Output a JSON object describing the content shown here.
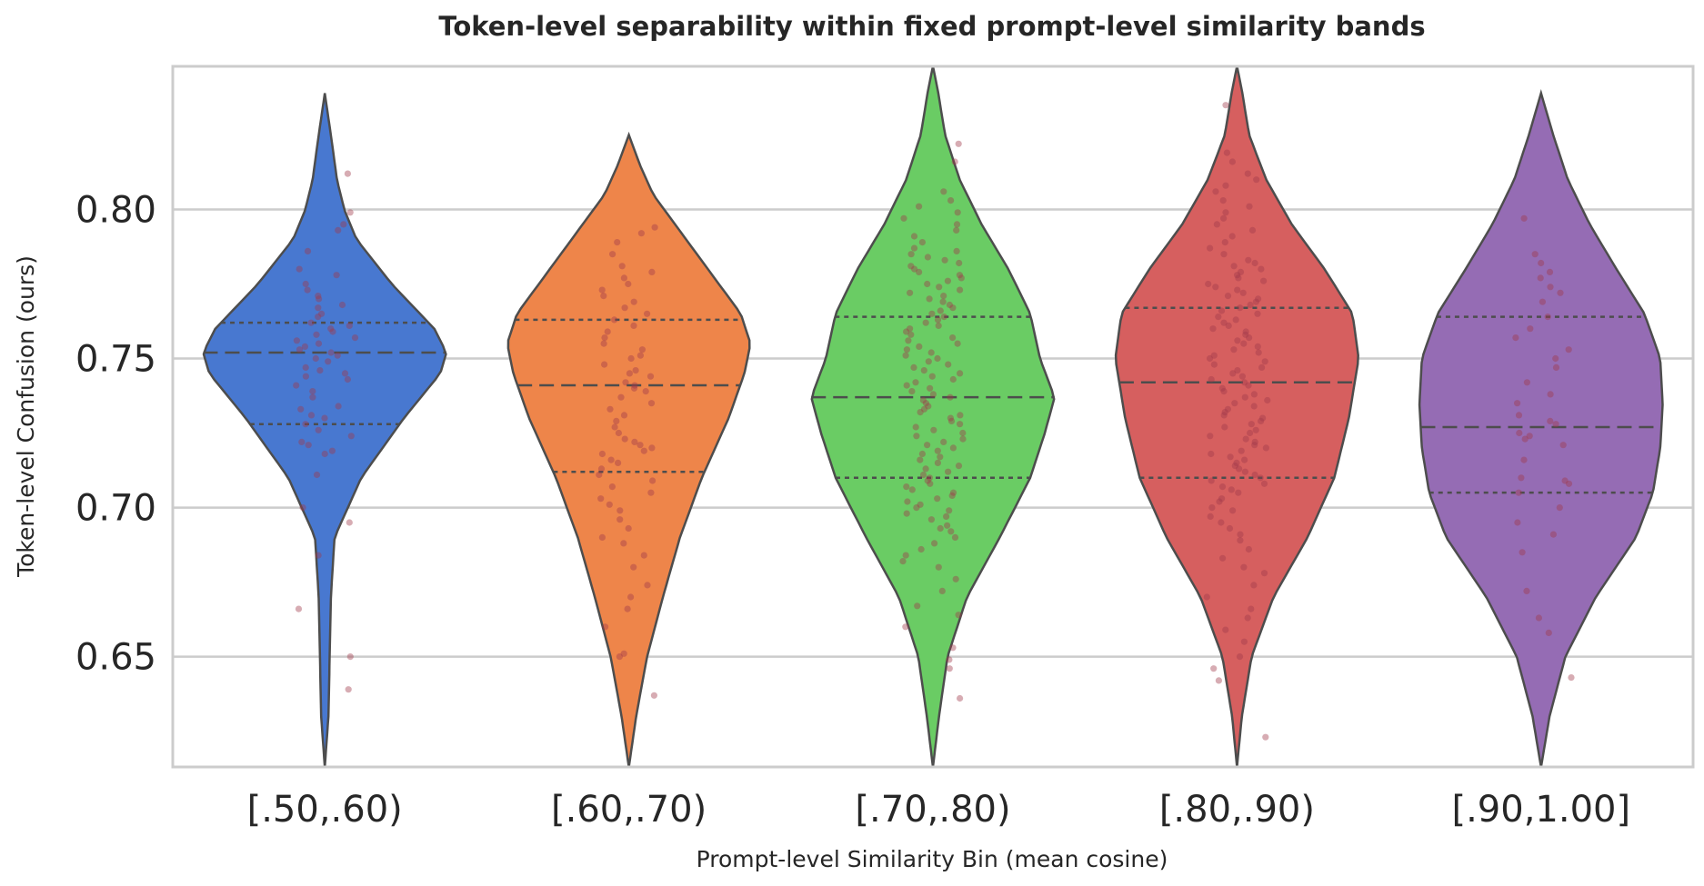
{
  "chart_data": {
    "type": "violin",
    "title": "Token-level separability within fixed prompt-level similarity bands",
    "xlabel": "Prompt-level Similarity Bin (mean cosine)",
    "ylabel": "Token-level Confusion (ours)",
    "ylim": [
      0.613,
      0.848
    ],
    "yticks": [
      0.65,
      0.7,
      0.75,
      0.8
    ],
    "ytick_labels": [
      "0.65",
      "0.70",
      "0.75",
      "0.80"
    ],
    "grid": true,
    "point_color": "#a03a4a",
    "categories": [
      "[.50,.60)",
      "[.60,.70)",
      "[.70,.80)",
      "[.80,.90)",
      "[.90,1.00]"
    ],
    "violins": [
      {
        "category": "[.50,.60)",
        "color": "#4878d0",
        "q1": 0.728,
        "median": 0.752,
        "q3": 0.762,
        "range": [
          0.613,
          0.839
        ],
        "profile": [
          [
            0.613,
            0.0
          ],
          [
            0.63,
            0.03
          ],
          [
            0.65,
            0.04
          ],
          [
            0.67,
            0.05
          ],
          [
            0.69,
            0.08
          ],
          [
            0.71,
            0.3
          ],
          [
            0.73,
            0.65
          ],
          [
            0.745,
            0.95
          ],
          [
            0.752,
            1.0
          ],
          [
            0.76,
            0.9
          ],
          [
            0.775,
            0.55
          ],
          [
            0.79,
            0.26
          ],
          [
            0.8,
            0.16
          ],
          [
            0.81,
            0.1
          ],
          [
            0.825,
            0.05
          ],
          [
            0.839,
            0.0
          ]
        ],
        "points": [
          0.639,
          0.65,
          0.666,
          0.684,
          0.695,
          0.7,
          0.711,
          0.718,
          0.719,
          0.721,
          0.722,
          0.724,
          0.726,
          0.728,
          0.73,
          0.731,
          0.733,
          0.734,
          0.737,
          0.739,
          0.741,
          0.743,
          0.744,
          0.745,
          0.746,
          0.747,
          0.749,
          0.75,
          0.751,
          0.752,
          0.753,
          0.754,
          0.755,
          0.756,
          0.757,
          0.758,
          0.759,
          0.76,
          0.761,
          0.762,
          0.764,
          0.765,
          0.767,
          0.768,
          0.77,
          0.771,
          0.773,
          0.775,
          0.778,
          0.78,
          0.786,
          0.793,
          0.795,
          0.799,
          0.812
        ]
      },
      {
        "category": "[.60,.70)",
        "color": "#ee854a",
        "q1": 0.712,
        "median": 0.741,
        "q3": 0.763,
        "range": [
          0.613,
          0.825
        ],
        "profile": [
          [
            0.613,
            0.0
          ],
          [
            0.63,
            0.06
          ],
          [
            0.65,
            0.15
          ],
          [
            0.67,
            0.28
          ],
          [
            0.69,
            0.42
          ],
          [
            0.71,
            0.6
          ],
          [
            0.73,
            0.82
          ],
          [
            0.745,
            0.95
          ],
          [
            0.755,
            1.0
          ],
          [
            0.765,
            0.92
          ],
          [
            0.78,
            0.65
          ],
          [
            0.795,
            0.38
          ],
          [
            0.805,
            0.2
          ],
          [
            0.815,
            0.09
          ],
          [
            0.825,
            0.0
          ]
        ],
        "points": [
          0.637,
          0.65,
          0.651,
          0.66,
          0.666,
          0.67,
          0.674,
          0.68,
          0.684,
          0.688,
          0.69,
          0.693,
          0.696,
          0.699,
          0.701,
          0.703,
          0.705,
          0.707,
          0.709,
          0.711,
          0.713,
          0.715,
          0.716,
          0.718,
          0.719,
          0.72,
          0.721,
          0.722,
          0.723,
          0.725,
          0.727,
          0.729,
          0.731,
          0.733,
          0.735,
          0.737,
          0.739,
          0.74,
          0.741,
          0.742,
          0.744,
          0.745,
          0.746,
          0.748,
          0.75,
          0.751,
          0.753,
          0.755,
          0.757,
          0.759,
          0.761,
          0.763,
          0.765,
          0.767,
          0.769,
          0.771,
          0.773,
          0.775,
          0.777,
          0.779,
          0.781,
          0.785,
          0.789,
          0.792,
          0.794
        ]
      },
      {
        "category": "[.70,.80)",
        "color": "#6acc64",
        "q1": 0.71,
        "median": 0.737,
        "q3": 0.764,
        "range": [
          0.613,
          0.848
        ],
        "profile": [
          [
            0.613,
            0.0
          ],
          [
            0.63,
            0.05
          ],
          [
            0.65,
            0.12
          ],
          [
            0.67,
            0.28
          ],
          [
            0.69,
            0.55
          ],
          [
            0.71,
            0.8
          ],
          [
            0.725,
            0.92
          ],
          [
            0.737,
            1.0
          ],
          [
            0.75,
            0.88
          ],
          [
            0.765,
            0.8
          ],
          [
            0.78,
            0.62
          ],
          [
            0.795,
            0.4
          ],
          [
            0.81,
            0.22
          ],
          [
            0.825,
            0.1
          ],
          [
            0.84,
            0.04
          ],
          [
            0.848,
            0.0
          ]
        ],
        "points": [
          0.636,
          0.646,
          0.649,
          0.653,
          0.66,
          0.664,
          0.667,
          0.672,
          0.676,
          0.68,
          0.682,
          0.684,
          0.686,
          0.688,
          0.69,
          0.692,
          0.693,
          0.694,
          0.696,
          0.697,
          0.698,
          0.699,
          0.7,
          0.701,
          0.702,
          0.703,
          0.704,
          0.705,
          0.706,
          0.707,
          0.708,
          0.709,
          0.71,
          0.711,
          0.712,
          0.713,
          0.714,
          0.715,
          0.716,
          0.717,
          0.718,
          0.719,
          0.72,
          0.721,
          0.722,
          0.723,
          0.724,
          0.725,
          0.726,
          0.727,
          0.728,
          0.729,
          0.73,
          0.731,
          0.732,
          0.733,
          0.734,
          0.735,
          0.736,
          0.737,
          0.738,
          0.739,
          0.74,
          0.741,
          0.742,
          0.743,
          0.744,
          0.745,
          0.746,
          0.747,
          0.748,
          0.749,
          0.75,
          0.751,
          0.752,
          0.753,
          0.754,
          0.755,
          0.756,
          0.757,
          0.758,
          0.759,
          0.76,
          0.761,
          0.762,
          0.763,
          0.764,
          0.765,
          0.766,
          0.767,
          0.768,
          0.769,
          0.77,
          0.771,
          0.772,
          0.773,
          0.774,
          0.775,
          0.776,
          0.777,
          0.778,
          0.779,
          0.78,
          0.781,
          0.782,
          0.783,
          0.784,
          0.785,
          0.786,
          0.787,
          0.789,
          0.791,
          0.793,
          0.795,
          0.797,
          0.799,
          0.801,
          0.803,
          0.806,
          0.816,
          0.822
        ]
      },
      {
        "category": "[.80,.90)",
        "color": "#d65f5f",
        "q1": 0.71,
        "median": 0.742,
        "q3": 0.767,
        "range": [
          0.613,
          0.848
        ],
        "profile": [
          [
            0.613,
            0.0
          ],
          [
            0.63,
            0.04
          ],
          [
            0.65,
            0.12
          ],
          [
            0.67,
            0.3
          ],
          [
            0.69,
            0.58
          ],
          [
            0.71,
            0.8
          ],
          [
            0.73,
            0.92
          ],
          [
            0.75,
            1.0
          ],
          [
            0.765,
            0.95
          ],
          [
            0.78,
            0.72
          ],
          [
            0.795,
            0.45
          ],
          [
            0.81,
            0.24
          ],
          [
            0.825,
            0.1
          ],
          [
            0.84,
            0.04
          ],
          [
            0.848,
            0.0
          ]
        ],
        "points": [
          0.623,
          0.642,
          0.646,
          0.65,
          0.655,
          0.659,
          0.663,
          0.666,
          0.67,
          0.674,
          0.678,
          0.68,
          0.683,
          0.686,
          0.689,
          0.691,
          0.693,
          0.695,
          0.697,
          0.699,
          0.7,
          0.702,
          0.703,
          0.705,
          0.706,
          0.707,
          0.708,
          0.709,
          0.71,
          0.711,
          0.712,
          0.713,
          0.714,
          0.715,
          0.716,
          0.717,
          0.718,
          0.719,
          0.72,
          0.721,
          0.722,
          0.723,
          0.724,
          0.725,
          0.726,
          0.727,
          0.728,
          0.729,
          0.73,
          0.731,
          0.732,
          0.733,
          0.734,
          0.735,
          0.736,
          0.737,
          0.738,
          0.739,
          0.74,
          0.741,
          0.742,
          0.743,
          0.744,
          0.745,
          0.746,
          0.747,
          0.748,
          0.749,
          0.75,
          0.751,
          0.752,
          0.753,
          0.754,
          0.755,
          0.756,
          0.757,
          0.758,
          0.759,
          0.76,
          0.761,
          0.762,
          0.763,
          0.764,
          0.765,
          0.766,
          0.767,
          0.768,
          0.769,
          0.77,
          0.771,
          0.772,
          0.773,
          0.774,
          0.775,
          0.776,
          0.777,
          0.778,
          0.779,
          0.78,
          0.781,
          0.782,
          0.783,
          0.785,
          0.787,
          0.789,
          0.791,
          0.793,
          0.795,
          0.797,
          0.799,
          0.801,
          0.803,
          0.806,
          0.808,
          0.81,
          0.812,
          0.816,
          0.819,
          0.835
        ]
      },
      {
        "category": "[.90,1.00]",
        "color": "#956cb4",
        "q1": 0.705,
        "median": 0.727,
        "q3": 0.764,
        "range": [
          0.613,
          0.839
        ],
        "profile": [
          [
            0.613,
            0.0
          ],
          [
            0.63,
            0.07
          ],
          [
            0.65,
            0.2
          ],
          [
            0.67,
            0.45
          ],
          [
            0.69,
            0.78
          ],
          [
            0.705,
            0.92
          ],
          [
            0.72,
            0.98
          ],
          [
            0.735,
            1.0
          ],
          [
            0.75,
            0.98
          ],
          [
            0.765,
            0.85
          ],
          [
            0.78,
            0.62
          ],
          [
            0.795,
            0.4
          ],
          [
            0.81,
            0.22
          ],
          [
            0.825,
            0.1
          ],
          [
            0.839,
            0.0
          ]
        ],
        "points": [
          0.643,
          0.658,
          0.663,
          0.672,
          0.685,
          0.691,
          0.695,
          0.7,
          0.705,
          0.708,
          0.709,
          0.71,
          0.716,
          0.721,
          0.723,
          0.724,
          0.725,
          0.728,
          0.729,
          0.731,
          0.735,
          0.738,
          0.742,
          0.747,
          0.75,
          0.753,
          0.757,
          0.76,
          0.764,
          0.769,
          0.772,
          0.774,
          0.777,
          0.779,
          0.782,
          0.785,
          0.797
        ]
      }
    ]
  }
}
